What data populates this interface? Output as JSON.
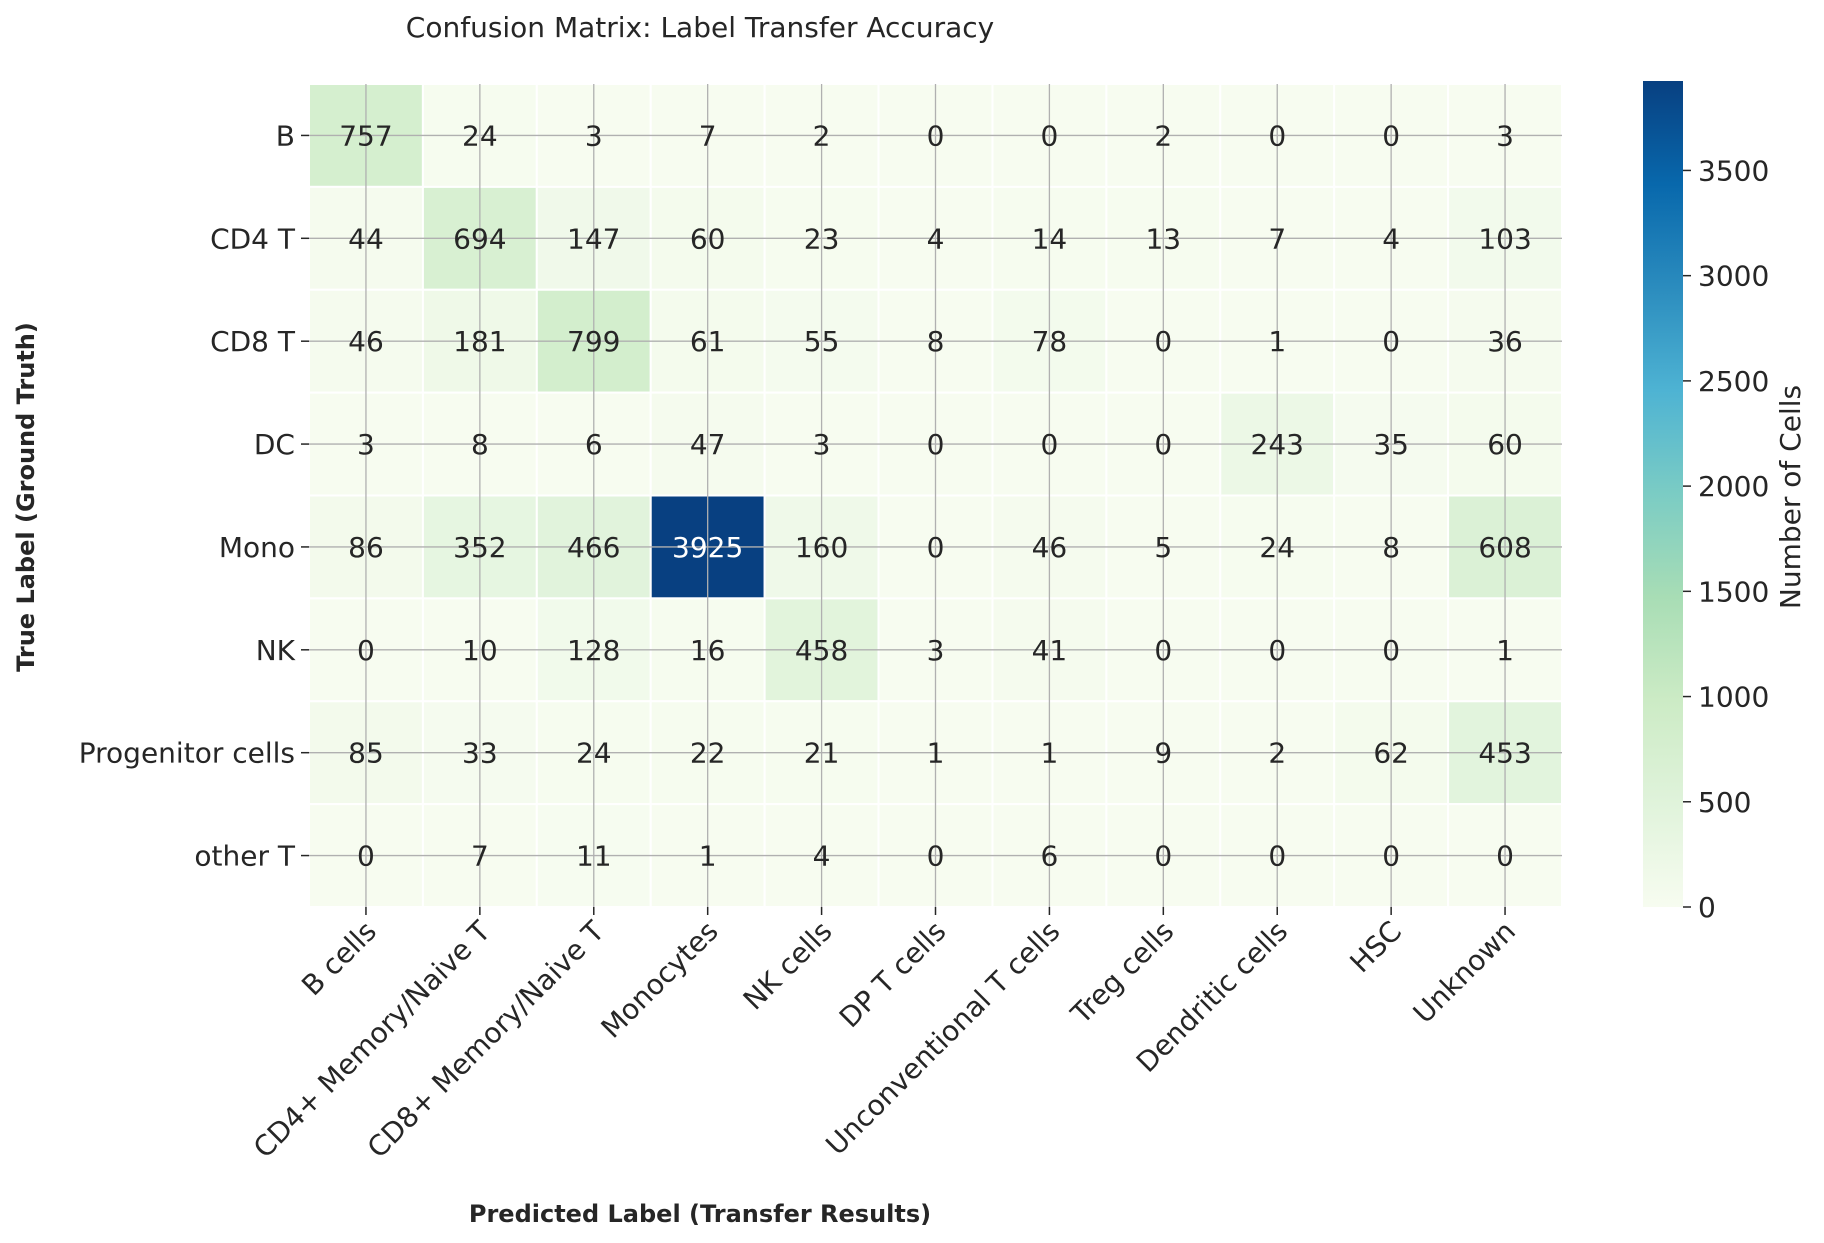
{
  "chart_data": {
    "type": "heatmap",
    "title": "Confusion Matrix: Label Transfer Accuracy",
    "xlabel": "Predicted Label (Transfer Results)",
    "ylabel": "True Label (Ground Truth)",
    "colorbar_label": "Number of Cells",
    "colormap": "GnBu",
    "vmin": 0,
    "vmax": 3925,
    "colorbar_ticks": [
      0,
      500,
      1000,
      1500,
      2000,
      2500,
      3000,
      3500
    ],
    "colorbar_tick_labels": [
      "0",
      "500",
      "1000",
      "1500",
      "2000",
      "2500",
      "3000",
      "3500"
    ],
    "grid": true,
    "rows": [
      "B",
      "CD4 T",
      "CD8 T",
      "DC",
      "Mono",
      "NK",
      "Progenitor cells",
      "other T"
    ],
    "columns": [
      "B cells",
      "CD4+ Memory/Naive T",
      "CD8+ Memory/Naive T",
      "Monocytes",
      "NK cells",
      "DP T cells",
      "Unconventional T cells",
      "Treg cells",
      "Dendritic cells",
      "HSC",
      "Unknown"
    ],
    "values": [
      [
        757,
        24,
        3,
        7,
        2,
        0,
        0,
        2,
        0,
        0,
        3
      ],
      [
        44,
        694,
        147,
        60,
        23,
        4,
        14,
        13,
        7,
        4,
        103
      ],
      [
        46,
        181,
        799,
        61,
        55,
        8,
        78,
        0,
        1,
        0,
        36
      ],
      [
        3,
        8,
        6,
        47,
        3,
        0,
        0,
        0,
        243,
        35,
        60
      ],
      [
        86,
        352,
        466,
        3925,
        160,
        0,
        46,
        5,
        24,
        8,
        608
      ],
      [
        0,
        10,
        128,
        16,
        458,
        3,
        41,
        0,
        0,
        0,
        1
      ],
      [
        85,
        33,
        24,
        22,
        21,
        1,
        1,
        9,
        2,
        62,
        453
      ],
      [
        0,
        7,
        11,
        1,
        4,
        0,
        6,
        0,
        0,
        0,
        0
      ]
    ]
  }
}
